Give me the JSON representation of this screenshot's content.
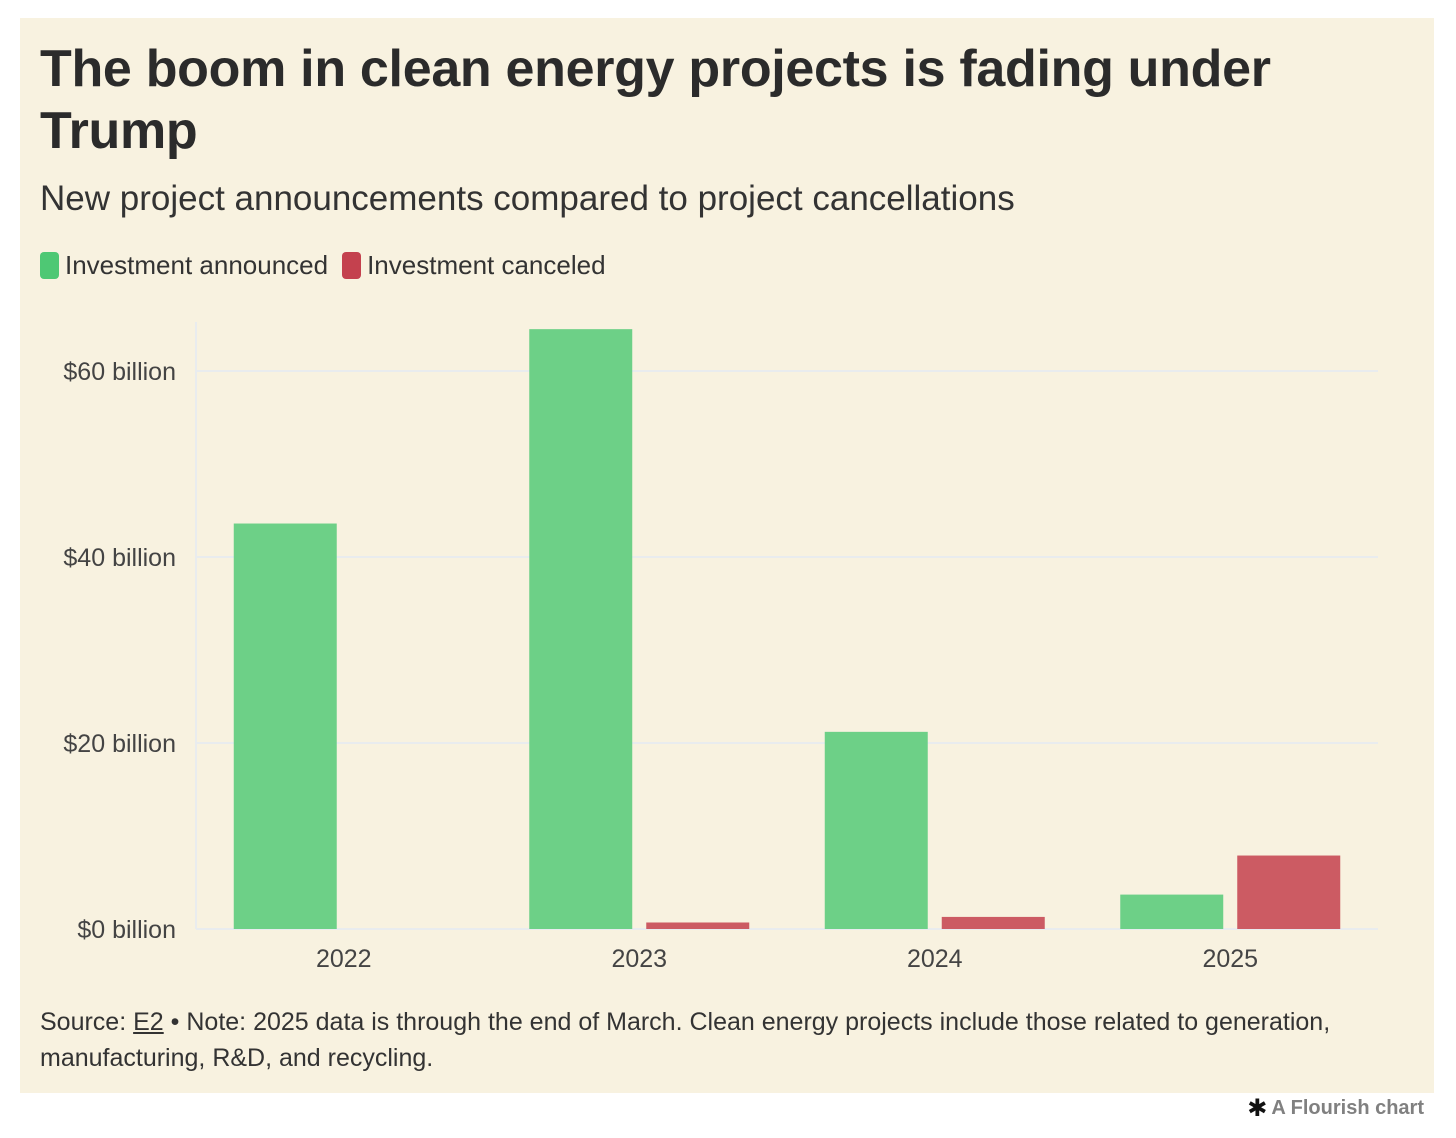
{
  "title": "The boom in clean energy projects is fading under Trump",
  "subtitle": "New project announcements compared to project cancellations",
  "colors": {
    "announced": "#6dd087",
    "canceled": "#cc5b63",
    "legend_announced": "#4ec874",
    "legend_canceled": "#c4414e",
    "background": "#f8f2e0",
    "grid": "#e9ecee"
  },
  "legend": [
    "Investment announced",
    "Investment canceled"
  ],
  "chart_data": {
    "type": "bar",
    "categories": [
      "2022",
      "2023",
      "2024",
      "2025"
    ],
    "series": [
      {
        "name": "Investment announced",
        "values": [
          43.6,
          64.5,
          21.2,
          3.7
        ]
      },
      {
        "name": "Investment canceled",
        "values": [
          0,
          0.7,
          1.3,
          7.9
        ]
      }
    ],
    "y_ticks": [
      "$0 billion",
      "$20 billion",
      "$40 billion",
      "$60 billion"
    ],
    "y_tick_values": [
      0,
      20,
      40,
      60
    ],
    "ylim": [
      0,
      65
    ],
    "grid": true,
    "legend_position": "top-left"
  },
  "footnote": {
    "source_label": "Source:",
    "source_link": "E2",
    "note": "• Note: 2025 data is through the end of March. Clean energy projects include those related to generation, manufacturing, R&D, and recycling."
  },
  "credit": {
    "icon": "asterisk-icon",
    "text": "A Flourish chart"
  }
}
